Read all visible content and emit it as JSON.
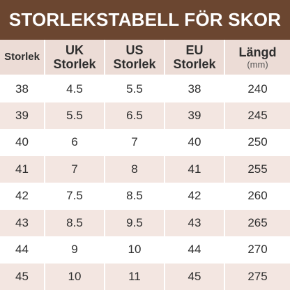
{
  "header": {
    "title": "STORLEKSTABELL FÖR SKOR"
  },
  "table": {
    "columns": [
      {
        "line1": "Storlek",
        "line2": ""
      },
      {
        "line1": "UK",
        "line2": "Storlek"
      },
      {
        "line1": "US",
        "line2": "Storlek"
      },
      {
        "line1": "EU",
        "line2": "Storlek"
      },
      {
        "line1": "Längd",
        "line2": "(mm)"
      }
    ],
    "rows": [
      [
        "38",
        "4.5",
        "5.5",
        "38",
        "240"
      ],
      [
        "39",
        "5.5",
        "6.5",
        "39",
        "245"
      ],
      [
        "40",
        "6",
        "7",
        "40",
        "250"
      ],
      [
        "41",
        "7",
        "8",
        "41",
        "255"
      ],
      [
        "42",
        "7.5",
        "8.5",
        "42",
        "260"
      ],
      [
        "43",
        "8.5",
        "9.5",
        "43",
        "265"
      ],
      [
        "44",
        "9",
        "10",
        "44",
        "270"
      ],
      [
        "45",
        "10",
        "11",
        "45",
        "275"
      ]
    ]
  },
  "colors": {
    "title_bar": "#6b4630",
    "header_bg": "#ecdcd6",
    "stripe_bg": "#f3e6e1"
  }
}
